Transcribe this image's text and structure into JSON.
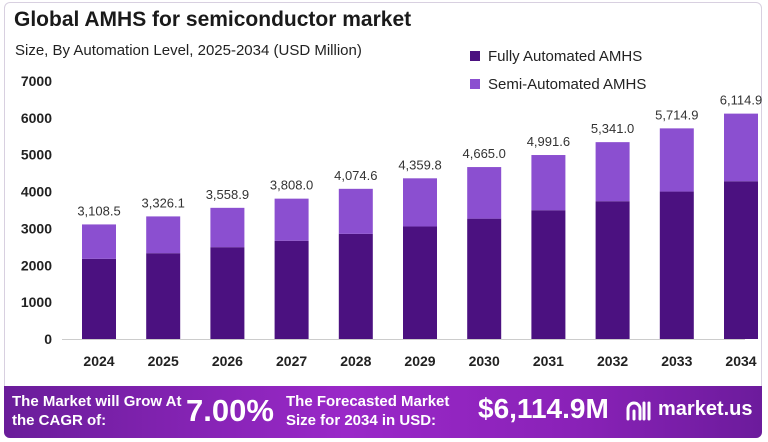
{
  "chart_data": {
    "type": "bar",
    "stacked": true,
    "title": "Global AMHS for semiconductor market",
    "subtitle": "Size, By Automation Level, 2025-2034 (USD Million)",
    "categories": [
      "2024",
      "2025",
      "2026",
      "2027",
      "2028",
      "2029",
      "2030",
      "2031",
      "2032",
      "2033",
      "2034"
    ],
    "series": [
      {
        "name": "Fully Automated AMHS",
        "color": "#4b1180",
        "values": [
          2176.0,
          2328.3,
          2491.2,
          2665.6,
          2852.2,
          3051.9,
          3265.5,
          3494.1,
          3738.7,
          4000.4,
          4280.4
        ]
      },
      {
        "name": "Semi-Automated AMHS",
        "color": "#8b4fd0",
        "values": [
          932.5,
          997.8,
          1067.7,
          1142.4,
          1222.4,
          1307.9,
          1399.5,
          1497.5,
          1602.3,
          1714.5,
          1834.5
        ]
      }
    ],
    "totals": [
      "3,108.5",
      "3,326.1",
      "3,558.9",
      "3,808.0",
      "4,074.6",
      "4,359.8",
      "4,665.0",
      "4,991.6",
      "5,341.0",
      "5,714.9",
      "6,114.9"
    ],
    "yticks": [
      "0",
      "1000",
      "2000",
      "3000",
      "4000",
      "5000",
      "6000",
      "7000"
    ],
    "ylim": [
      0,
      7000
    ],
    "grid": false,
    "legend_position": "top-right"
  },
  "footer": {
    "cagr_label": "The Market will Grow At the CAGR of:",
    "cagr_value": "7.00%",
    "forecast_label": "The Forecasted Market Size for 2034 in USD:",
    "forecast_value": "$6,114.9M",
    "brand": "market.us"
  }
}
